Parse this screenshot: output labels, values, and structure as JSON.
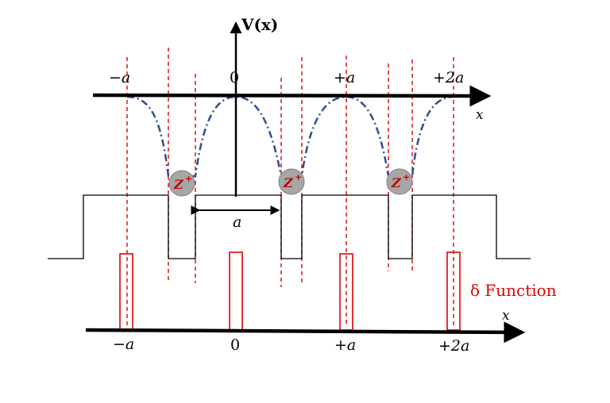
{
  "diagram": {
    "y_axis_label": "V(x)",
    "top_axis": {
      "x_label": "x",
      "ticks": [
        "−a",
        "0",
        "+a",
        "+2a"
      ]
    },
    "bottom_axis": {
      "x_label": "x",
      "ticks": [
        "−a",
        "0",
        "+a",
        "+2a"
      ]
    },
    "ion_label": "Z",
    "ion_superscript": "+",
    "spacing_label": "a",
    "delta_label": "δ Function",
    "colors": {
      "axis": "#000000",
      "potential_curve": "#2f4f8f",
      "guides": "#e00000",
      "delta": "#e00000",
      "ion_fill": "#a6a6a6",
      "ion_text": "#c00000"
    }
  }
}
